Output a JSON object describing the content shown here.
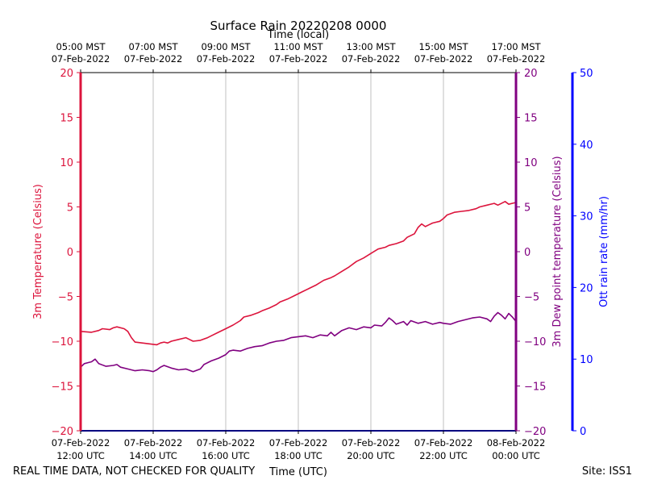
{
  "chart_data": {
    "type": "line",
    "title": "Surface Rain 20220208 0000",
    "top_axis_label": "Time (local)",
    "xlabel": "Time (UTC)",
    "footer_left": "REAL TIME DATA, NOT CHECKED FOR QUALITY",
    "footer_right": "Site: ISS1",
    "x_range_hours_utc": [
      12,
      24
    ],
    "bottom_ticks": [
      {
        "hour": 12,
        "line1": "07-Feb-2022",
        "line2": "12:00 UTC"
      },
      {
        "hour": 14,
        "line1": "07-Feb-2022",
        "line2": "14:00 UTC"
      },
      {
        "hour": 16,
        "line1": "07-Feb-2022",
        "line2": "16:00 UTC"
      },
      {
        "hour": 18,
        "line1": "07-Feb-2022",
        "line2": "18:00 UTC"
      },
      {
        "hour": 20,
        "line1": "07-Feb-2022",
        "line2": "20:00 UTC"
      },
      {
        "hour": 22,
        "line1": "07-Feb-2022",
        "line2": "22:00 UTC"
      },
      {
        "hour": 24,
        "line1": "08-Feb-2022",
        "line2": "00:00 UTC"
      }
    ],
    "top_ticks": [
      {
        "hour": 12,
        "line1": "05:00 MST",
        "line2": "07-Feb-2022"
      },
      {
        "hour": 14,
        "line1": "07:00 MST",
        "line2": "07-Feb-2022"
      },
      {
        "hour": 16,
        "line1": "09:00 MST",
        "line2": "07-Feb-2022"
      },
      {
        "hour": 18,
        "line1": "11:00 MST",
        "line2": "07-Feb-2022"
      },
      {
        "hour": 20,
        "line1": "13:00 MST",
        "line2": "07-Feb-2022"
      },
      {
        "hour": 22,
        "line1": "15:00 MST",
        "line2": "07-Feb-2022"
      },
      {
        "hour": 24,
        "line1": "17:00 MST",
        "line2": "07-Feb-2022"
      }
    ],
    "axes": {
      "temperature": {
        "label": "3m Temperature (Celsius)",
        "ylim": [
          -20,
          20
        ],
        "ticks": [
          -20,
          -15,
          -10,
          -5,
          0,
          5,
          10,
          15,
          20
        ],
        "color": "#dc143c"
      },
      "dewpoint": {
        "label": "3m Dew point temperature (Celsius)",
        "ylim": [
          -20,
          20
        ],
        "ticks": [
          -20,
          -15,
          -10,
          -5,
          0,
          5,
          10,
          15,
          20
        ],
        "color": "#800080"
      },
      "rain": {
        "label": "Ott rain rate (mm/hr)",
        "ylim": [
          0,
          50
        ],
        "ticks": [
          0,
          10,
          20,
          30,
          40,
          50
        ],
        "color": "#0000ff"
      }
    },
    "series": [
      {
        "name": "3m Temperature",
        "axis": "temperature",
        "color": "#dc143c",
        "points": [
          [
            12.0,
            -8.9
          ],
          [
            12.3,
            -9.0
          ],
          [
            12.5,
            -8.8
          ],
          [
            12.6,
            -8.6
          ],
          [
            12.8,
            -8.7
          ],
          [
            12.9,
            -8.5
          ],
          [
            13.0,
            -8.4
          ],
          [
            13.2,
            -8.6
          ],
          [
            13.3,
            -8.9
          ],
          [
            13.4,
            -9.6
          ],
          [
            13.5,
            -10.1
          ],
          [
            13.7,
            -10.2
          ],
          [
            13.9,
            -10.3
          ],
          [
            14.1,
            -10.4
          ],
          [
            14.2,
            -10.2
          ],
          [
            14.3,
            -10.1
          ],
          [
            14.4,
            -10.2
          ],
          [
            14.5,
            -10.0
          ],
          [
            14.7,
            -9.8
          ],
          [
            14.9,
            -9.6
          ],
          [
            15.0,
            -9.8
          ],
          [
            15.1,
            -10.0
          ],
          [
            15.3,
            -9.9
          ],
          [
            15.5,
            -9.6
          ],
          [
            15.6,
            -9.4
          ],
          [
            15.8,
            -9.0
          ],
          [
            16.0,
            -8.6
          ],
          [
            16.2,
            -8.2
          ],
          [
            16.4,
            -7.7
          ],
          [
            16.5,
            -7.3
          ],
          [
            16.7,
            -7.1
          ],
          [
            16.9,
            -6.8
          ],
          [
            17.0,
            -6.6
          ],
          [
            17.2,
            -6.3
          ],
          [
            17.4,
            -5.9
          ],
          [
            17.5,
            -5.6
          ],
          [
            17.7,
            -5.3
          ],
          [
            17.9,
            -4.9
          ],
          [
            18.1,
            -4.5
          ],
          [
            18.3,
            -4.1
          ],
          [
            18.5,
            -3.7
          ],
          [
            18.7,
            -3.2
          ],
          [
            18.9,
            -2.9
          ],
          [
            19.0,
            -2.7
          ],
          [
            19.2,
            -2.2
          ],
          [
            19.4,
            -1.7
          ],
          [
            19.6,
            -1.1
          ],
          [
            19.8,
            -0.7
          ],
          [
            20.0,
            -0.2
          ],
          [
            20.2,
            0.3
          ],
          [
            20.4,
            0.5
          ],
          [
            20.5,
            0.7
          ],
          [
            20.7,
            0.9
          ],
          [
            20.9,
            1.2
          ],
          [
            21.0,
            1.6
          ],
          [
            21.2,
            2.0
          ],
          [
            21.3,
            2.7
          ],
          [
            21.4,
            3.1
          ],
          [
            21.5,
            2.8
          ],
          [
            21.6,
            3.0
          ],
          [
            21.7,
            3.2
          ],
          [
            21.9,
            3.4
          ],
          [
            22.0,
            3.7
          ],
          [
            22.1,
            4.1
          ],
          [
            22.3,
            4.4
          ],
          [
            22.5,
            4.5
          ],
          [
            22.7,
            4.6
          ],
          [
            22.9,
            4.8
          ],
          [
            23.0,
            5.0
          ],
          [
            23.2,
            5.2
          ],
          [
            23.4,
            5.4
          ],
          [
            23.5,
            5.2
          ],
          [
            23.7,
            5.6
          ],
          [
            23.8,
            5.3
          ],
          [
            24.0,
            5.5
          ]
        ]
      },
      {
        "name": "3m Dew point temperature",
        "axis": "dewpoint",
        "color": "#800080",
        "points": [
          [
            12.0,
            -12.9
          ],
          [
            12.1,
            -12.5
          ],
          [
            12.2,
            -12.4
          ],
          [
            12.3,
            -12.3
          ],
          [
            12.4,
            -12.0
          ],
          [
            12.5,
            -12.5
          ],
          [
            12.7,
            -12.8
          ],
          [
            12.9,
            -12.7
          ],
          [
            13.0,
            -12.6
          ],
          [
            13.1,
            -12.9
          ],
          [
            13.3,
            -13.1
          ],
          [
            13.5,
            -13.3
          ],
          [
            13.7,
            -13.2
          ],
          [
            13.9,
            -13.3
          ],
          [
            14.0,
            -13.4
          ],
          [
            14.1,
            -13.2
          ],
          [
            14.2,
            -12.9
          ],
          [
            14.3,
            -12.7
          ],
          [
            14.5,
            -13.0
          ],
          [
            14.7,
            -13.2
          ],
          [
            14.9,
            -13.1
          ],
          [
            15.1,
            -13.4
          ],
          [
            15.3,
            -13.1
          ],
          [
            15.4,
            -12.6
          ],
          [
            15.6,
            -12.2
          ],
          [
            15.8,
            -11.9
          ],
          [
            16.0,
            -11.5
          ],
          [
            16.1,
            -11.1
          ],
          [
            16.2,
            -11.0
          ],
          [
            16.4,
            -11.1
          ],
          [
            16.6,
            -10.8
          ],
          [
            16.8,
            -10.6
          ],
          [
            17.0,
            -10.5
          ],
          [
            17.2,
            -10.2
          ],
          [
            17.4,
            -10.0
          ],
          [
            17.6,
            -9.9
          ],
          [
            17.8,
            -9.6
          ],
          [
            18.0,
            -9.5
          ],
          [
            18.2,
            -9.4
          ],
          [
            18.4,
            -9.6
          ],
          [
            18.6,
            -9.3
          ],
          [
            18.8,
            -9.4
          ],
          [
            18.9,
            -9.0
          ],
          [
            19.0,
            -9.4
          ],
          [
            19.2,
            -8.8
          ],
          [
            19.4,
            -8.5
          ],
          [
            19.6,
            -8.7
          ],
          [
            19.8,
            -8.4
          ],
          [
            20.0,
            -8.5
          ],
          [
            20.1,
            -8.2
          ],
          [
            20.3,
            -8.3
          ],
          [
            20.4,
            -7.9
          ],
          [
            20.5,
            -7.4
          ],
          [
            20.6,
            -7.7
          ],
          [
            20.7,
            -8.1
          ],
          [
            20.9,
            -7.8
          ],
          [
            21.0,
            -8.2
          ],
          [
            21.1,
            -7.7
          ],
          [
            21.3,
            -8.0
          ],
          [
            21.5,
            -7.8
          ],
          [
            21.7,
            -8.1
          ],
          [
            21.9,
            -7.9
          ],
          [
            22.0,
            -8.0
          ],
          [
            22.2,
            -8.1
          ],
          [
            22.4,
            -7.8
          ],
          [
            22.6,
            -7.6
          ],
          [
            22.8,
            -7.4
          ],
          [
            23.0,
            -7.3
          ],
          [
            23.2,
            -7.5
          ],
          [
            23.3,
            -7.8
          ],
          [
            23.4,
            -7.2
          ],
          [
            23.5,
            -6.8
          ],
          [
            23.6,
            -7.1
          ],
          [
            23.7,
            -7.5
          ],
          [
            23.8,
            -6.9
          ],
          [
            23.9,
            -7.3
          ],
          [
            24.0,
            -7.8
          ]
        ]
      },
      {
        "name": "Ott rain rate",
        "axis": "rain",
        "color": "#0000ff",
        "points": [
          [
            12.0,
            0.0
          ],
          [
            24.0,
            0.0
          ]
        ]
      }
    ]
  }
}
